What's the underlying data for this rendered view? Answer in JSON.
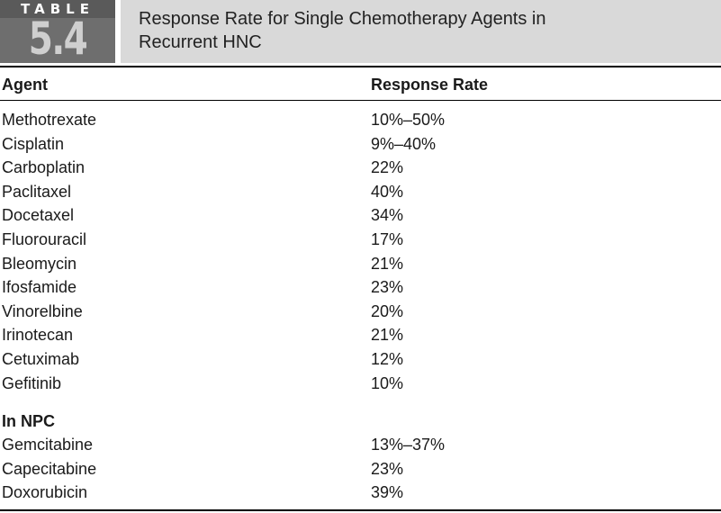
{
  "badge": {
    "word": "TABLE",
    "number": "5.4"
  },
  "title_line1": "Response Rate for Single Chemotherapy Agents in",
  "title_line2": "Recurrent HNC",
  "columns": {
    "agent": "Agent",
    "rate": "Response Rate"
  },
  "rows": [
    {
      "agent": "Methotrexate",
      "rate": "10%–50%"
    },
    {
      "agent": "Cisplatin",
      "rate": "9%–40%"
    },
    {
      "agent": "Carboplatin",
      "rate": "22%"
    },
    {
      "agent": "Paclitaxel",
      "rate": "40%"
    },
    {
      "agent": "Docetaxel",
      "rate": "34%"
    },
    {
      "agent": "Fluorouracil",
      "rate": "17%"
    },
    {
      "agent": "Bleomycin",
      "rate": "21%"
    },
    {
      "agent": "Ifosfamide",
      "rate": "23%"
    },
    {
      "agent": "Vinorelbine",
      "rate": "20%"
    },
    {
      "agent": "Irinotecan",
      "rate": "21%"
    },
    {
      "agent": "Cetuximab",
      "rate": "12%"
    },
    {
      "agent": "Gefitinib",
      "rate": "10%"
    }
  ],
  "section_npc": {
    "label": "In NPC",
    "rows": [
      {
        "agent": "Gemcitabine",
        "rate": "13%–37%"
      },
      {
        "agent": "Capecitabine",
        "rate": "23%"
      },
      {
        "agent": "Doxorubicin",
        "rate": "39%"
      }
    ]
  }
}
